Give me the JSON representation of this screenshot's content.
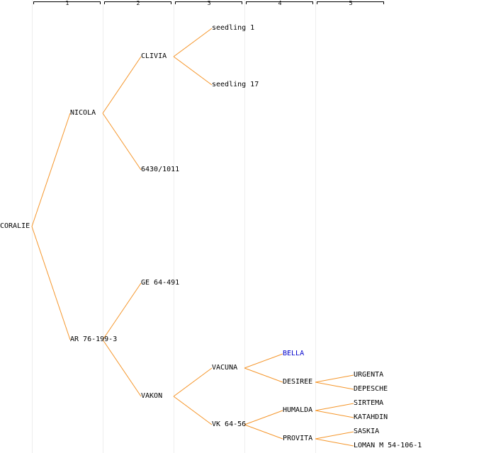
{
  "generations": [
    "1",
    "2",
    "3",
    "4",
    "5"
  ],
  "colors": {
    "edge": "#f5962b",
    "text": "#000000",
    "highlight": "#0000cc",
    "grid": "#eeeeee"
  },
  "tree": {
    "name": "CORALIE",
    "children": [
      {
        "name": "NICOLA",
        "children": [
          {
            "name": "CLIVIA",
            "children": [
              {
                "name": "seedling 1"
              },
              {
                "name": "seedling 17"
              }
            ]
          },
          {
            "name": "6430/1011"
          }
        ]
      },
      {
        "name": "AR 76-199-3",
        "children": [
          {
            "name": "GE 64-491"
          },
          {
            "name": "VAKON",
            "children": [
              {
                "name": "VACUNA",
                "children": [
                  {
                    "name": "BELLA",
                    "highlight": true
                  },
                  {
                    "name": "DESIREE",
                    "children": [
                      {
                        "name": "URGENTA"
                      },
                      {
                        "name": "DEPESCHE"
                      }
                    ]
                  }
                ]
              },
              {
                "name": "VK 64-56",
                "children": [
                  {
                    "name": "HUMALDA",
                    "children": [
                      {
                        "name": "SIRTEMA"
                      },
                      {
                        "name": "KATAHDIN"
                      }
                    ]
                  },
                  {
                    "name": "PROVITA",
                    "children": [
                      {
                        "name": "SASKIA"
                      },
                      {
                        "name": "LOMAN M 54-106-1"
                      }
                    ]
                  }
                ]
              }
            ]
          }
        ]
      }
    ]
  }
}
